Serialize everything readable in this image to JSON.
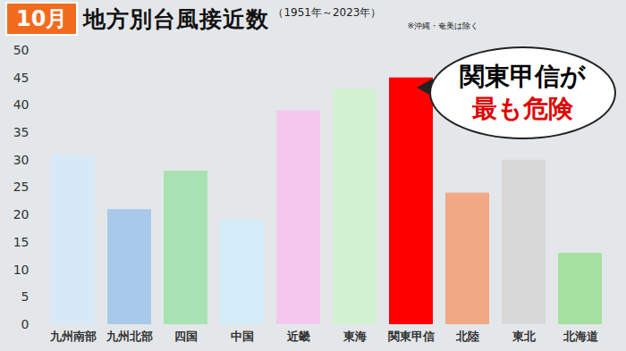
{
  "chart_data": {
    "type": "bar",
    "title_badge": "10月",
    "title": "地方別台風接近数",
    "subtitle": "（1951年～2023年）",
    "note": "※沖縄・奄美は除く",
    "annotation": [
      "関東甲信が",
      "最も危険"
    ],
    "categories": [
      "九州南部",
      "九州北部",
      "四国",
      "中国",
      "近畿",
      "東海",
      "関東甲信",
      "北陸",
      "東北",
      "北海道"
    ],
    "values": [
      31,
      21,
      28,
      19,
      39,
      43,
      45,
      24,
      30,
      13
    ],
    "colors": [
      "#d7e8f6",
      "#a9c9ea",
      "#a9e2b2",
      "#d5ecf9",
      "#f4c8ef",
      "#d3f2d2",
      "#ff0000",
      "#f0a984",
      "#d8d8d8",
      "#a6e0a0"
    ],
    "ylim": [
      0,
      50
    ],
    "yticks": [
      0,
      5,
      10,
      15,
      20,
      25,
      30,
      35,
      40,
      45,
      50
    ],
    "grid": false
  }
}
